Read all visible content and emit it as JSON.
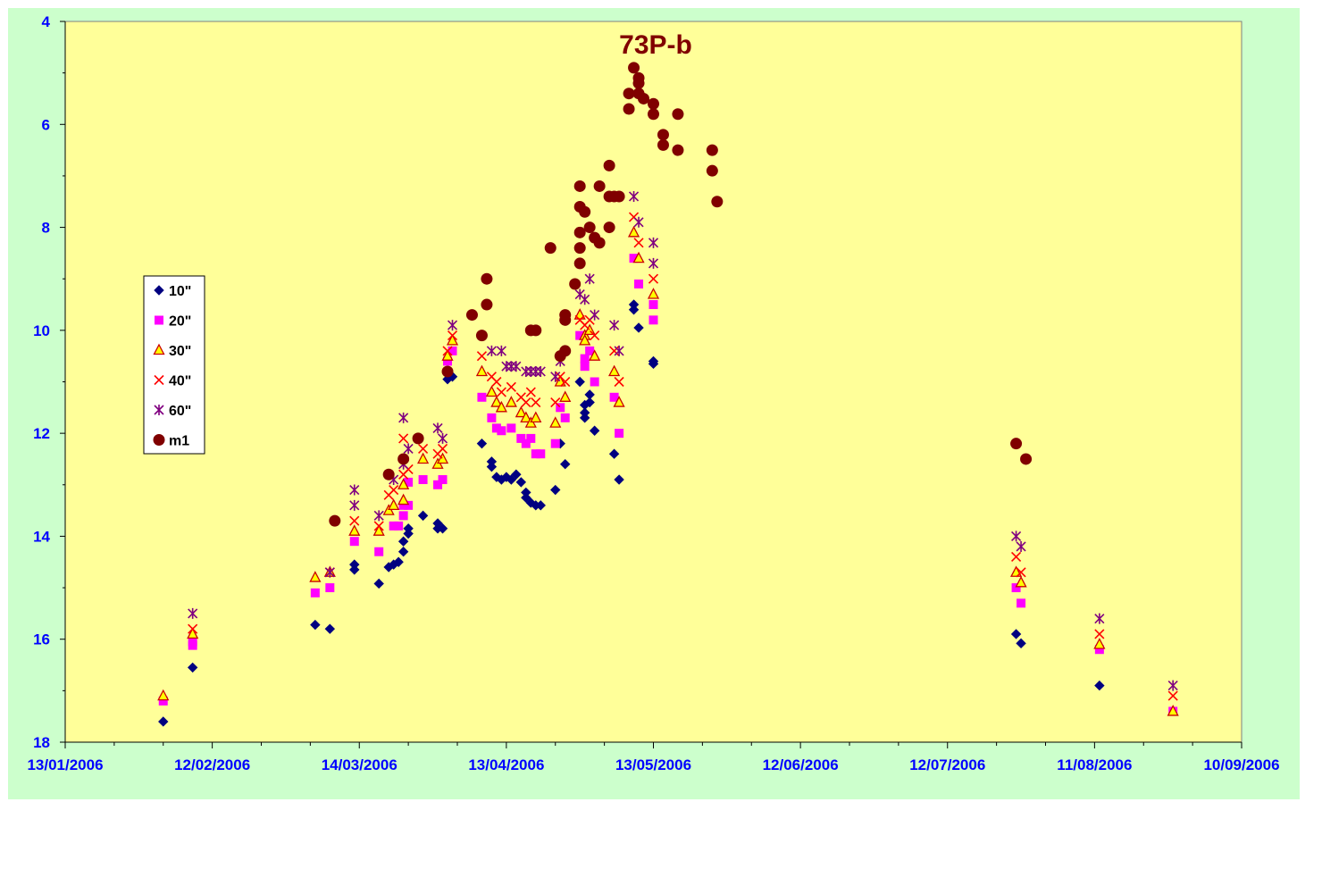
{
  "chart_data": {
    "type": "scatter",
    "title": "73P-b",
    "xlabel": "",
    "ylabel": "",
    "x_axis": {
      "type": "date",
      "min": "2006-01-13",
      "max": "2006-09-10",
      "tick_labels": [
        "13/01/2006",
        "12/02/2006",
        "14/03/2006",
        "13/04/2006",
        "13/05/2006",
        "12/06/2006",
        "12/07/2006",
        "11/08/2006",
        "10/09/2006"
      ]
    },
    "y_axis": {
      "min": 4,
      "max": 18,
      "inverted": true,
      "tick_labels": [
        "4",
        "6",
        "8",
        "10",
        "12",
        "14",
        "16",
        "18"
      ]
    },
    "grid": false,
    "legend_position": "left",
    "colors": {
      "plot_background": "#ffff99",
      "outer_background": "#ccffcc",
      "tick_label": "#0000ff",
      "title": "#800000"
    },
    "series": [
      {
        "name": "10\"",
        "marker": "diamond",
        "color": "#000080",
        "points": [
          [
            "2006-02-02",
            17.6
          ],
          [
            "2006-02-08",
            16.55
          ],
          [
            "2006-03-05",
            15.72
          ],
          [
            "2006-03-08",
            15.8
          ],
          [
            "2006-03-13",
            14.55
          ],
          [
            "2006-03-13",
            14.65
          ],
          [
            "2006-03-18",
            14.92
          ],
          [
            "2006-03-20",
            14.6
          ],
          [
            "2006-03-21",
            14.55
          ],
          [
            "2006-03-22",
            14.5
          ],
          [
            "2006-03-23",
            14.3
          ],
          [
            "2006-03-23",
            14.1
          ],
          [
            "2006-03-24",
            13.95
          ],
          [
            "2006-03-24",
            13.85
          ],
          [
            "2006-03-27",
            13.6
          ],
          [
            "2006-03-30",
            13.85
          ],
          [
            "2006-03-30",
            13.75
          ],
          [
            "2006-03-31",
            13.85
          ],
          [
            "2006-04-01",
            10.95
          ],
          [
            "2006-04-02",
            10.9
          ],
          [
            "2006-04-08",
            12.2
          ],
          [
            "2006-04-10",
            12.55
          ],
          [
            "2006-04-10",
            12.65
          ],
          [
            "2006-04-11",
            12.85
          ],
          [
            "2006-04-12",
            12.9
          ],
          [
            "2006-04-13",
            12.85
          ],
          [
            "2006-04-14",
            12.9
          ],
          [
            "2006-04-15",
            12.8
          ],
          [
            "2006-04-16",
            12.95
          ],
          [
            "2006-04-17",
            13.15
          ],
          [
            "2006-04-17",
            13.25
          ],
          [
            "2006-04-18",
            13.35
          ],
          [
            "2006-04-19",
            13.4
          ],
          [
            "2006-04-20",
            13.4
          ],
          [
            "2006-04-23",
            13.1
          ],
          [
            "2006-04-24",
            12.2
          ],
          [
            "2006-04-25",
            12.6
          ],
          [
            "2006-04-28",
            11.0
          ],
          [
            "2006-04-29",
            11.45
          ],
          [
            "2006-04-29",
            11.6
          ],
          [
            "2006-04-29",
            11.7
          ],
          [
            "2006-04-30",
            11.25
          ],
          [
            "2006-04-30",
            11.4
          ],
          [
            "2006-05-01",
            11.95
          ],
          [
            "2006-05-05",
            12.4
          ],
          [
            "2006-05-06",
            12.9
          ],
          [
            "2006-05-09",
            9.5
          ],
          [
            "2006-05-09",
            9.6
          ],
          [
            "2006-05-10",
            9.95
          ],
          [
            "2006-05-13",
            10.6
          ],
          [
            "2006-05-13",
            10.65
          ],
          [
            "2006-07-26",
            15.9
          ],
          [
            "2006-07-27",
            16.08
          ],
          [
            "2006-08-12",
            16.9
          ]
        ]
      },
      {
        "name": "20\"",
        "marker": "square",
        "color": "#ff00ff",
        "points": [
          [
            "2006-02-02",
            17.2
          ],
          [
            "2006-02-08",
            16.05
          ],
          [
            "2006-02-08",
            16.12
          ],
          [
            "2006-03-05",
            15.1
          ],
          [
            "2006-03-08",
            15.0
          ],
          [
            "2006-03-13",
            14.1
          ],
          [
            "2006-03-18",
            14.3
          ],
          [
            "2006-03-21",
            13.8
          ],
          [
            "2006-03-22",
            13.8
          ],
          [
            "2006-03-23",
            13.6
          ],
          [
            "2006-03-23",
            13.4
          ],
          [
            "2006-03-24",
            13.4
          ],
          [
            "2006-03-24",
            12.95
          ],
          [
            "2006-03-27",
            12.9
          ],
          [
            "2006-03-30",
            13.0
          ],
          [
            "2006-03-31",
            12.9
          ],
          [
            "2006-04-01",
            10.6
          ],
          [
            "2006-04-02",
            10.4
          ],
          [
            "2006-04-08",
            11.3
          ],
          [
            "2006-04-10",
            11.7
          ],
          [
            "2006-04-11",
            11.9
          ],
          [
            "2006-04-12",
            11.95
          ],
          [
            "2006-04-14",
            11.9
          ],
          [
            "2006-04-16",
            12.1
          ],
          [
            "2006-04-17",
            12.2
          ],
          [
            "2006-04-18",
            12.1
          ],
          [
            "2006-04-19",
            12.4
          ],
          [
            "2006-04-20",
            12.4
          ],
          [
            "2006-04-23",
            12.2
          ],
          [
            "2006-04-24",
            11.5
          ],
          [
            "2006-04-25",
            11.7
          ],
          [
            "2006-04-28",
            10.1
          ],
          [
            "2006-04-29",
            10.55
          ],
          [
            "2006-04-29",
            10.7
          ],
          [
            "2006-04-30",
            10.4
          ],
          [
            "2006-05-01",
            11.0
          ],
          [
            "2006-05-05",
            11.3
          ],
          [
            "2006-05-06",
            12.0
          ],
          [
            "2006-05-09",
            8.6
          ],
          [
            "2006-05-10",
            9.1
          ],
          [
            "2006-05-13",
            9.5
          ],
          [
            "2006-05-13",
            9.8
          ],
          [
            "2006-07-26",
            15.0
          ],
          [
            "2006-07-27",
            15.3
          ],
          [
            "2006-08-12",
            16.2
          ],
          [
            "2006-08-27",
            17.4
          ]
        ]
      },
      {
        "name": "30\"",
        "marker": "triangle",
        "color": "#ffff00",
        "stroke": "#cc0000",
        "points": [
          [
            "2006-02-02",
            17.1
          ],
          [
            "2006-02-08",
            15.9
          ],
          [
            "2006-03-05",
            14.8
          ],
          [
            "2006-03-08",
            14.7
          ],
          [
            "2006-03-13",
            13.9
          ],
          [
            "2006-03-18",
            13.9
          ],
          [
            "2006-03-20",
            13.5
          ],
          [
            "2006-03-21",
            13.4
          ],
          [
            "2006-03-23",
            13.3
          ],
          [
            "2006-03-23",
            13.0
          ],
          [
            "2006-03-27",
            12.5
          ],
          [
            "2006-03-30",
            12.6
          ],
          [
            "2006-03-31",
            12.5
          ],
          [
            "2006-04-01",
            10.5
          ],
          [
            "2006-04-02",
            10.2
          ],
          [
            "2006-04-08",
            10.8
          ],
          [
            "2006-04-10",
            11.2
          ],
          [
            "2006-04-11",
            11.4
          ],
          [
            "2006-04-12",
            11.5
          ],
          [
            "2006-04-14",
            11.4
          ],
          [
            "2006-04-16",
            11.6
          ],
          [
            "2006-04-17",
            11.7
          ],
          [
            "2006-04-18",
            11.8
          ],
          [
            "2006-04-19",
            11.7
          ],
          [
            "2006-04-23",
            11.8
          ],
          [
            "2006-04-24",
            11.0
          ],
          [
            "2006-04-25",
            11.3
          ],
          [
            "2006-04-28",
            9.7
          ],
          [
            "2006-04-29",
            10.1
          ],
          [
            "2006-04-29",
            10.2
          ],
          [
            "2006-04-30",
            10.0
          ],
          [
            "2006-05-01",
            10.5
          ],
          [
            "2006-05-05",
            10.8
          ],
          [
            "2006-05-06",
            11.4
          ],
          [
            "2006-05-09",
            8.1
          ],
          [
            "2006-05-10",
            8.6
          ],
          [
            "2006-05-13",
            9.3
          ],
          [
            "2006-07-26",
            14.7
          ],
          [
            "2006-07-27",
            14.9
          ],
          [
            "2006-08-12",
            16.1
          ],
          [
            "2006-08-27",
            17.4
          ]
        ]
      },
      {
        "name": "40\"",
        "marker": "x",
        "color": "#ff0000",
        "points": [
          [
            "2006-02-08",
            15.8
          ],
          [
            "2006-03-08",
            14.7
          ],
          [
            "2006-03-13",
            13.7
          ],
          [
            "2006-03-18",
            13.8
          ],
          [
            "2006-03-20",
            13.2
          ],
          [
            "2006-03-21",
            13.1
          ],
          [
            "2006-03-23",
            12.1
          ],
          [
            "2006-03-23",
            12.8
          ],
          [
            "2006-03-24",
            12.7
          ],
          [
            "2006-03-27",
            12.3
          ],
          [
            "2006-03-30",
            12.4
          ],
          [
            "2006-03-31",
            12.3
          ],
          [
            "2006-04-01",
            10.4
          ],
          [
            "2006-04-02",
            10.1
          ],
          [
            "2006-04-08",
            10.5
          ],
          [
            "2006-04-10",
            10.9
          ],
          [
            "2006-04-11",
            11.0
          ],
          [
            "2006-04-12",
            11.2
          ],
          [
            "2006-04-14",
            11.1
          ],
          [
            "2006-04-16",
            11.3
          ],
          [
            "2006-04-17",
            11.4
          ],
          [
            "2006-04-18",
            11.2
          ],
          [
            "2006-04-19",
            11.4
          ],
          [
            "2006-04-23",
            11.4
          ],
          [
            "2006-04-24",
            10.9
          ],
          [
            "2006-04-25",
            11.0
          ],
          [
            "2006-04-28",
            9.8
          ],
          [
            "2006-04-29",
            9.9
          ],
          [
            "2006-04-30",
            9.8
          ],
          [
            "2006-05-01",
            10.1
          ],
          [
            "2006-05-05",
            10.4
          ],
          [
            "2006-05-06",
            11.0
          ],
          [
            "2006-05-09",
            7.8
          ],
          [
            "2006-05-10",
            8.3
          ],
          [
            "2006-05-13",
            9.0
          ],
          [
            "2006-07-26",
            14.4
          ],
          [
            "2006-07-27",
            14.7
          ],
          [
            "2006-08-12",
            15.9
          ],
          [
            "2006-08-27",
            17.1
          ]
        ]
      },
      {
        "name": "60\"",
        "marker": "star",
        "color": "#800080",
        "points": [
          [
            "2006-02-08",
            15.5
          ],
          [
            "2006-03-08",
            14.7
          ],
          [
            "2006-03-13",
            13.1
          ],
          [
            "2006-03-13",
            13.4
          ],
          [
            "2006-03-18",
            13.6
          ],
          [
            "2006-03-21",
            12.9
          ],
          [
            "2006-03-23",
            11.7
          ],
          [
            "2006-03-23",
            12.6
          ],
          [
            "2006-03-24",
            12.3
          ],
          [
            "2006-03-30",
            11.9
          ],
          [
            "2006-03-31",
            12.1
          ],
          [
            "2006-04-02",
            9.9
          ],
          [
            "2006-04-10",
            10.4
          ],
          [
            "2006-04-12",
            10.4
          ],
          [
            "2006-04-13",
            10.7
          ],
          [
            "2006-04-14",
            10.7
          ],
          [
            "2006-04-15",
            10.7
          ],
          [
            "2006-04-17",
            10.8
          ],
          [
            "2006-04-18",
            10.8
          ],
          [
            "2006-04-19",
            10.8
          ],
          [
            "2006-04-20",
            10.8
          ],
          [
            "2006-04-23",
            10.9
          ],
          [
            "2006-04-24",
            10.6
          ],
          [
            "2006-04-28",
            9.3
          ],
          [
            "2006-04-29",
            9.4
          ],
          [
            "2006-04-30",
            9.0
          ],
          [
            "2006-05-01",
            9.7
          ],
          [
            "2006-05-05",
            9.9
          ],
          [
            "2006-05-06",
            10.4
          ],
          [
            "2006-05-09",
            7.4
          ],
          [
            "2006-05-10",
            7.9
          ],
          [
            "2006-05-13",
            8.3
          ],
          [
            "2006-05-13",
            8.7
          ],
          [
            "2006-07-26",
            14.0
          ],
          [
            "2006-07-27",
            14.2
          ],
          [
            "2006-08-12",
            15.6
          ],
          [
            "2006-08-27",
            16.9
          ]
        ]
      },
      {
        "name": "m1",
        "marker": "circle",
        "color": "#800000",
        "points": [
          [
            "2006-03-09",
            13.7
          ],
          [
            "2006-03-20",
            12.8
          ],
          [
            "2006-03-23",
            12.5
          ],
          [
            "2006-03-26",
            12.1
          ],
          [
            "2006-04-01",
            10.8
          ],
          [
            "2006-04-06",
            9.7
          ],
          [
            "2006-04-09",
            9.0
          ],
          [
            "2006-04-09",
            9.5
          ],
          [
            "2006-04-08",
            10.1
          ],
          [
            "2006-04-18",
            10.0
          ],
          [
            "2006-04-19",
            10.0
          ],
          [
            "2006-04-22",
            8.4
          ],
          [
            "2006-04-24",
            10.5
          ],
          [
            "2006-04-25",
            9.8
          ],
          [
            "2006-04-25",
            9.7
          ],
          [
            "2006-04-25",
            10.4
          ],
          [
            "2006-04-27",
            9.1
          ],
          [
            "2006-04-28",
            7.2
          ],
          [
            "2006-04-28",
            7.6
          ],
          [
            "2006-04-29",
            7.7
          ],
          [
            "2006-04-28",
            8.1
          ],
          [
            "2006-04-28",
            8.4
          ],
          [
            "2006-04-28",
            8.7
          ],
          [
            "2006-04-30",
            8.0
          ],
          [
            "2006-05-01",
            8.2
          ],
          [
            "2006-05-02",
            7.2
          ],
          [
            "2006-05-02",
            8.3
          ],
          [
            "2006-05-04",
            6.8
          ],
          [
            "2006-05-04",
            7.4
          ],
          [
            "2006-05-04",
            8.0
          ],
          [
            "2006-05-05",
            7.4
          ],
          [
            "2006-05-06",
            7.4
          ],
          [
            "2006-05-08",
            5.4
          ],
          [
            "2006-05-08",
            5.7
          ],
          [
            "2006-05-09",
            4.9
          ],
          [
            "2006-05-10",
            5.4
          ],
          [
            "2006-05-10",
            5.1
          ],
          [
            "2006-05-10",
            5.2
          ],
          [
            "2006-05-11",
            5.5
          ],
          [
            "2006-05-13",
            5.6
          ],
          [
            "2006-05-13",
            5.8
          ],
          [
            "2006-05-15",
            6.2
          ],
          [
            "2006-05-15",
            6.4
          ],
          [
            "2006-05-18",
            5.8
          ],
          [
            "2006-05-18",
            6.5
          ],
          [
            "2006-05-25",
            6.5
          ],
          [
            "2006-05-25",
            6.9
          ],
          [
            "2006-05-26",
            7.5
          ],
          [
            "2006-07-26",
            12.2
          ],
          [
            "2006-07-28",
            12.5
          ]
        ]
      }
    ]
  }
}
